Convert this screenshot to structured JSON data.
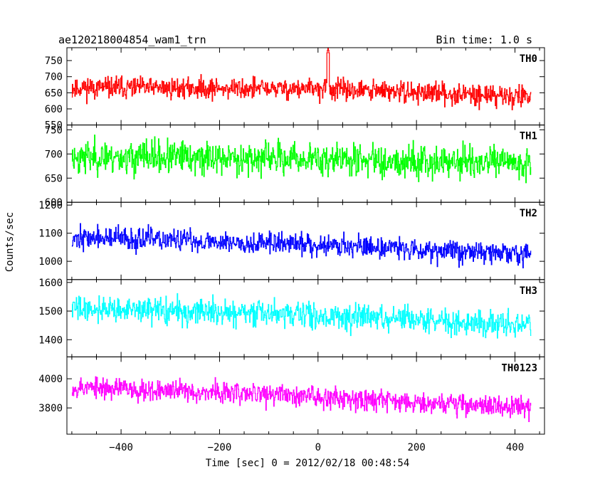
{
  "header": {
    "title": "ae120218004854_wam1_trn",
    "bin_time": "Bin time: 1.0 s"
  },
  "axes": {
    "xlabel": "Time [sec] 0 = 2012/02/18 00:48:54",
    "ylabel": "Counts/sec",
    "x_range": [
      -510,
      460
    ],
    "x_ticks": [
      -400,
      -200,
      0,
      200,
      400
    ],
    "x_tick_labels": [
      "−400",
      "−200",
      "0",
      "200",
      "400"
    ]
  },
  "chart_data": {
    "type": "line",
    "x_start": -500,
    "x_end": 432,
    "bin": 1.0,
    "panels": [
      {
        "name": "TH0",
        "color": "#ff0000",
        "ylim": [
          550,
          790
        ],
        "y_ticks": [
          550,
          600,
          650,
          700,
          750
        ],
        "mean_trend": [
          {
            "x": -500,
            "y": 666
          },
          {
            "x": 0,
            "y": 662
          },
          {
            "x": 432,
            "y": 638
          }
        ],
        "noise_amplitude": 33,
        "features": [
          {
            "x": 20,
            "peak": 790
          }
        ],
        "seed": 11
      },
      {
        "name": "TH1",
        "color": "#00ff00",
        "ylim": [
          600,
          760
        ],
        "y_ticks": [
          600,
          650,
          700,
          750
        ],
        "mean_trend": [
          {
            "x": -500,
            "y": 694
          },
          {
            "x": 0,
            "y": 690
          },
          {
            "x": 432,
            "y": 680
          }
        ],
        "noise_amplitude": 34,
        "features": [],
        "seed": 23
      },
      {
        "name": "TH2",
        "color": "#0000ff",
        "ylim": [
          935,
          1210
        ],
        "y_ticks": [
          1000,
          1100,
          1200
        ],
        "mean_trend": [
          {
            "x": -500,
            "y": 1085
          },
          {
            "x": 0,
            "y": 1060
          },
          {
            "x": 432,
            "y": 1025
          }
        ],
        "noise_amplitude": 40,
        "features": [],
        "seed": 37
      },
      {
        "name": "TH3",
        "color": "#00ffff",
        "ylim": [
          1340,
          1610
        ],
        "y_ticks": [
          1400,
          1500,
          1600
        ],
        "mean_trend": [
          {
            "x": -500,
            "y": 1510
          },
          {
            "x": 0,
            "y": 1485
          },
          {
            "x": 432,
            "y": 1450
          }
        ],
        "noise_amplitude": 45,
        "features": [],
        "seed": 41
      },
      {
        "name": "TH0123",
        "color": "#ff00ff",
        "ylim": [
          3620,
          4150
        ],
        "y_ticks": [
          3800,
          4000
        ],
        "mean_trend": [
          {
            "x": -500,
            "y": 3945
          },
          {
            "x": 0,
            "y": 3880
          },
          {
            "x": 432,
            "y": 3800
          }
        ],
        "noise_amplitude": 75,
        "features": [],
        "seed": 53
      }
    ]
  }
}
